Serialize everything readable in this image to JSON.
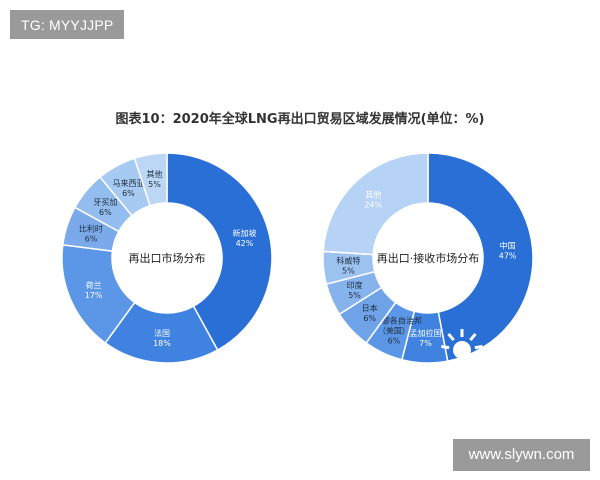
{
  "watermarks": {
    "top_left": "TG: MYYJJPP",
    "bottom_right": "www.slywn.com"
  },
  "title": "图表10：2020年全球LNG再出口贸易区域发展情况(单位：%)",
  "chart_data": [
    {
      "type": "donut",
      "center_label": "再出口市场分布",
      "slices": [
        {
          "label": "新加坡",
          "value": 42,
          "color": "#2a6fd6"
        },
        {
          "label": "法国",
          "value": 18,
          "color": "#3f82e0"
        },
        {
          "label": "荷兰",
          "value": 17,
          "color": "#5b97e6"
        },
        {
          "label": "比利时",
          "value": 6,
          "color": "#7aaaea"
        },
        {
          "label": "牙买加",
          "value": 6,
          "color": "#93bcef"
        },
        {
          "label": "马来西亚",
          "value": 6,
          "color": "#a7caf2"
        },
        {
          "label": "其他",
          "value": 5,
          "color": "#bcd6f5"
        }
      ]
    },
    {
      "type": "donut",
      "center_label": "再出口·接收市场分布",
      "slices": [
        {
          "label": "中国",
          "value": 47,
          "color": "#2a6fd6"
        },
        {
          "label": "孟加拉国",
          "value": 7,
          "color": "#3f82e0"
        },
        {
          "label": "波多黎各自治邦（美国）",
          "value": 6,
          "color": "#5b97e6"
        },
        {
          "label": "日本",
          "value": 6,
          "color": "#6ea3e8"
        },
        {
          "label": "印度",
          "value": 5,
          "color": "#86b3ec"
        },
        {
          "label": "科威特",
          "value": 5,
          "color": "#9cc2f0"
        },
        {
          "label": "其他",
          "value": 24,
          "color": "#b6d2f4"
        }
      ]
    }
  ]
}
